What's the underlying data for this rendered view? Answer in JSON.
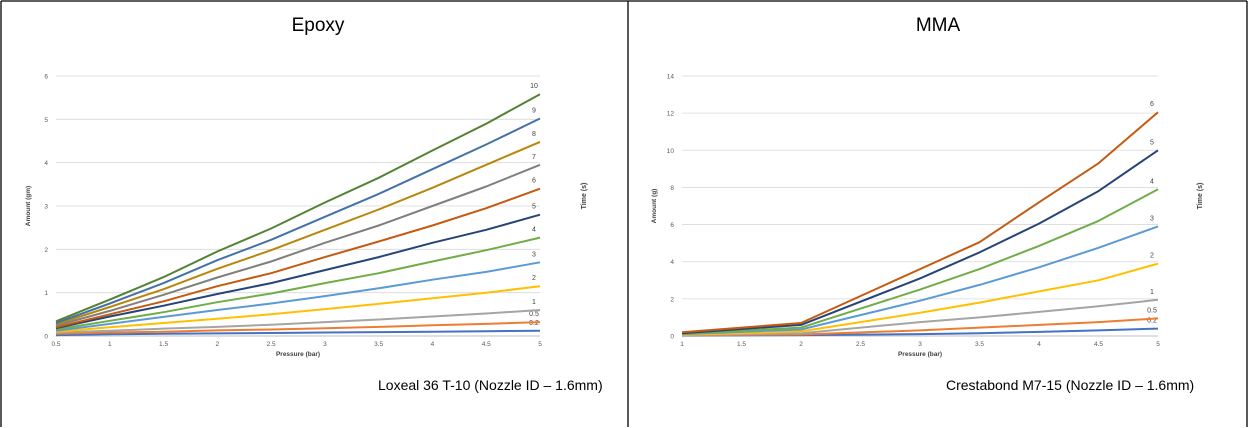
{
  "panels": [
    {
      "title": "Epoxy",
      "caption": "Loxeal 36 T-10 (Nozzle ID – 1.6mm)"
    },
    {
      "title": "MMA",
      "caption": "Crestabond M7-15 (Nozzle ID – 1.6mm)"
    }
  ],
  "chart_data": [
    {
      "type": "line",
      "title": "",
      "xlabel": "Pressure (bar)",
      "ylabel": "Amount (gm)",
      "y2label": "Time (s)",
      "x": [
        0.5,
        1,
        1.5,
        2,
        2.5,
        3,
        3.5,
        4,
        4.5,
        5
      ],
      "xticks": [
        "0.5",
        "1",
        "1.5",
        "2",
        "2.5",
        "3",
        "3.5",
        "4",
        "4.5",
        "5"
      ],
      "yticks": [
        "0",
        "1",
        "2",
        "3",
        "4",
        "5",
        "6"
      ],
      "xlim": [
        0.5,
        5
      ],
      "ylim": [
        0,
        6
      ],
      "grid": true,
      "series": [
        {
          "name": "0.2",
          "color": "#4472C4",
          "values": [
            0.02,
            0.04,
            0.05,
            0.06,
            0.07,
            0.08,
            0.09,
            0.1,
            0.11,
            0.12
          ]
        },
        {
          "name": "0.5",
          "color": "#ED7D31",
          "values": [
            0.05,
            0.08,
            0.1,
            0.13,
            0.15,
            0.18,
            0.21,
            0.25,
            0.28,
            0.32
          ]
        },
        {
          "name": "1",
          "color": "#A5A5A5",
          "values": [
            0.08,
            0.12,
            0.17,
            0.21,
            0.26,
            0.32,
            0.38,
            0.45,
            0.52,
            0.6
          ]
        },
        {
          "name": "2",
          "color": "#FFC000",
          "values": [
            0.1,
            0.2,
            0.3,
            0.4,
            0.5,
            0.62,
            0.74,
            0.87,
            1.0,
            1.15
          ]
        },
        {
          "name": "3",
          "color": "#5B9BD5",
          "values": [
            0.12,
            0.28,
            0.44,
            0.6,
            0.75,
            0.92,
            1.1,
            1.3,
            1.48,
            1.7
          ]
        },
        {
          "name": "4",
          "color": "#70AD47",
          "values": [
            0.15,
            0.35,
            0.55,
            0.78,
            0.98,
            1.22,
            1.45,
            1.72,
            1.98,
            2.27
          ]
        },
        {
          "name": "5",
          "color": "#264478",
          "values": [
            0.18,
            0.45,
            0.7,
            0.97,
            1.22,
            1.52,
            1.82,
            2.15,
            2.45,
            2.8
          ]
        },
        {
          "name": "6",
          "color": "#C55A11",
          "values": [
            0.2,
            0.5,
            0.8,
            1.15,
            1.45,
            1.82,
            2.18,
            2.55,
            2.95,
            3.4
          ]
        },
        {
          "name": "7",
          "color": "#7F7F7F",
          "values": [
            0.24,
            0.58,
            0.95,
            1.35,
            1.72,
            2.15,
            2.55,
            3.0,
            3.45,
            3.95
          ]
        },
        {
          "name": "8",
          "color": "#B8860B",
          "values": [
            0.27,
            0.67,
            1.08,
            1.55,
            1.98,
            2.45,
            2.92,
            3.42,
            3.95,
            4.48
          ]
        },
        {
          "name": "9",
          "color": "#4472A8",
          "values": [
            0.3,
            0.75,
            1.22,
            1.75,
            2.22,
            2.75,
            3.28,
            3.85,
            4.42,
            5.02
          ]
        },
        {
          "name": "10",
          "color": "#548235",
          "values": [
            0.34,
            0.84,
            1.36,
            1.95,
            2.48,
            3.08,
            3.65,
            4.28,
            4.9,
            5.58
          ]
        }
      ]
    },
    {
      "type": "line",
      "title": "",
      "xlabel": "Pressure (bar)",
      "ylabel": "Amount (g)",
      "y2label": "Time (s)",
      "x": [
        1,
        2,
        3,
        3.5,
        4,
        4.5,
        5
      ],
      "xticks": [
        "1",
        "1.5",
        "2",
        "2.5",
        "3",
        "3.5",
        "4",
        "4.5",
        "5"
      ],
      "yticks": [
        "0",
        "2",
        "4",
        "6",
        "8",
        "10",
        "12",
        "14"
      ],
      "xlim": [
        1,
        5
      ],
      "ylim": [
        0,
        14
      ],
      "grid": true,
      "series": [
        {
          "name": "0.2",
          "color": "#4472C4",
          "values": [
            0.02,
            0.05,
            0.1,
            0.15,
            0.22,
            0.3,
            0.4
          ]
        },
        {
          "name": "0.5",
          "color": "#ED7D31",
          "values": [
            0.03,
            0.08,
            0.3,
            0.45,
            0.6,
            0.75,
            0.95
          ]
        },
        {
          "name": "1",
          "color": "#A5A5A5",
          "values": [
            0.05,
            0.15,
            0.75,
            1.0,
            1.3,
            1.6,
            1.95
          ]
        },
        {
          "name": "2",
          "color": "#FFC000",
          "values": [
            0.07,
            0.25,
            1.25,
            1.8,
            2.4,
            3.0,
            3.9
          ]
        },
        {
          "name": "3",
          "color": "#5B9BD5",
          "values": [
            0.1,
            0.35,
            1.9,
            2.75,
            3.7,
            4.75,
            5.9
          ]
        },
        {
          "name": "4",
          "color": "#70AD47",
          "values": [
            0.12,
            0.45,
            2.5,
            3.6,
            4.85,
            6.2,
            7.9
          ]
        },
        {
          "name": "5",
          "color": "#264478",
          "values": [
            0.15,
            0.6,
            3.1,
            4.5,
            6.05,
            7.8,
            10.0
          ]
        },
        {
          "name": "6",
          "color": "#C55A11",
          "values": [
            0.2,
            0.7,
            3.6,
            5.05,
            7.2,
            9.3,
            12.05
          ]
        }
      ]
    }
  ]
}
